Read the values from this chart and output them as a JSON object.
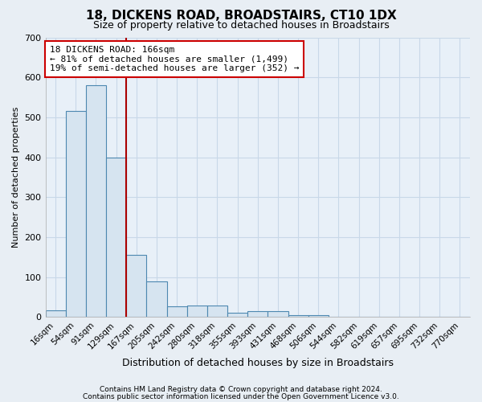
{
  "title": "18, DICKENS ROAD, BROADSTAIRS, CT10 1DX",
  "subtitle": "Size of property relative to detached houses in Broadstairs",
  "xlabel": "Distribution of detached houses by size in Broadstairs",
  "ylabel": "Number of detached properties",
  "bar_labels": [
    "16sqm",
    "54sqm",
    "91sqm",
    "129sqm",
    "167sqm",
    "205sqm",
    "242sqm",
    "280sqm",
    "318sqm",
    "355sqm",
    "393sqm",
    "431sqm",
    "468sqm",
    "506sqm",
    "544sqm",
    "582sqm",
    "619sqm",
    "657sqm",
    "695sqm",
    "732sqm",
    "770sqm"
  ],
  "bar_values": [
    18,
    515,
    580,
    400,
    155,
    90,
    28,
    30,
    30,
    10,
    15,
    15,
    5,
    5,
    0,
    0,
    0,
    0,
    0,
    0,
    0
  ],
  "bar_color": "#d6e4f0",
  "bar_edge_color": "#4d88b0",
  "vline_color": "#aa0000",
  "annotation_text": "18 DICKENS ROAD: 166sqm\n← 81% of detached houses are smaller (1,499)\n19% of semi-detached houses are larger (352) →",
  "annotation_box_facecolor": "#ffffff",
  "annotation_box_edgecolor": "#cc0000",
  "ylim": [
    0,
    700
  ],
  "yticks": [
    0,
    100,
    200,
    300,
    400,
    500,
    600,
    700
  ],
  "footnote1": "Contains HM Land Registry data © Crown copyright and database right 2024.",
  "footnote2": "Contains public sector information licensed under the Open Government Licence v3.0.",
  "fig_facecolor": "#e8eef4",
  "plot_facecolor": "#e8f0f8",
  "grid_color": "#c8d8e8"
}
